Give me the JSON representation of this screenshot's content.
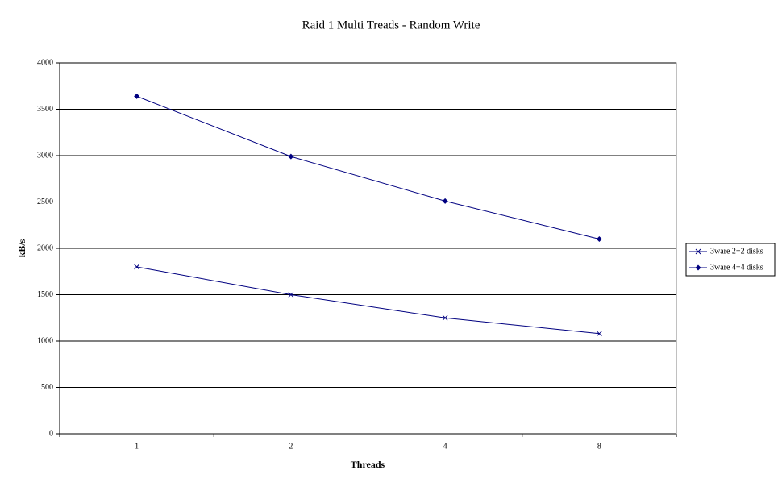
{
  "chart_data": {
    "type": "line",
    "title": "Raid 1 Multi Treads - Random Write",
    "x_label": "Threads",
    "y_label": "kB/s",
    "categories": [
      "1",
      "2",
      "4",
      "8"
    ],
    "series": [
      {
        "name": "3ware 2+2 disks",
        "color": "#000080",
        "marker": "x",
        "values": [
          1800,
          1500,
          1250,
          1080
        ]
      },
      {
        "name": "3ware 4+4 disks",
        "color": "#000080",
        "marker": "diamond",
        "values": [
          3640,
          2990,
          2510,
          2100
        ]
      }
    ],
    "ylim": [
      0,
      4000
    ],
    "yticks": [
      0,
      500,
      1000,
      1500,
      2000,
      2500,
      3000,
      3500,
      4000
    ],
    "grid": true,
    "legend": "right"
  }
}
